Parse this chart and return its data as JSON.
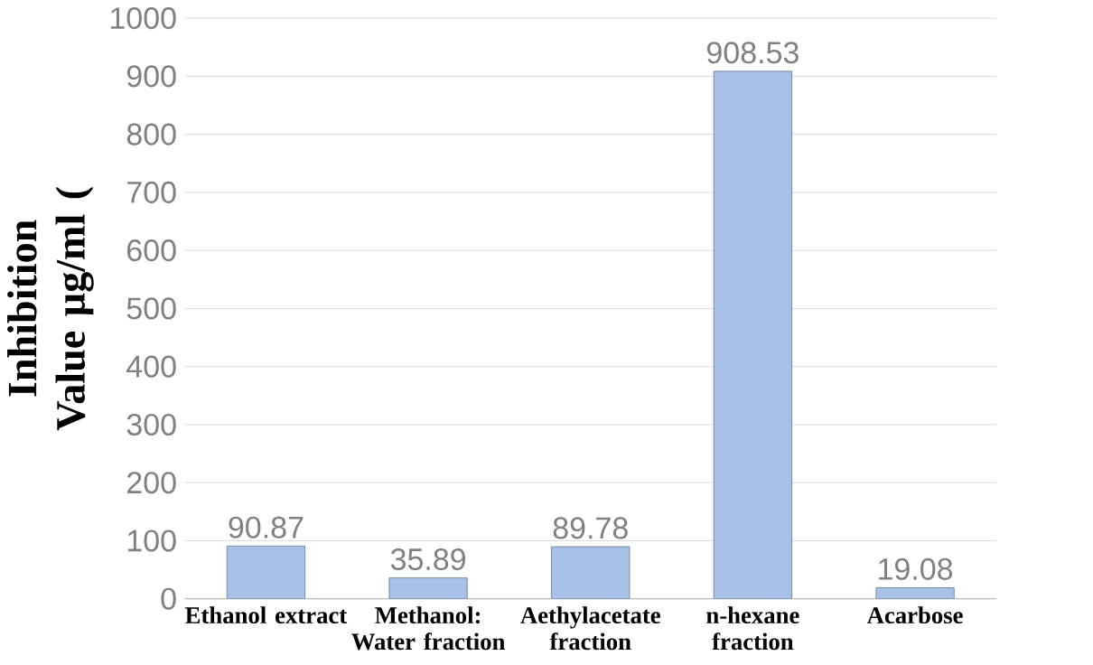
{
  "chart_data": {
    "type": "bar",
    "ylabel": "Inhibition Value µg/ml (",
    "categories": [
      "Ethanol extract",
      "Methanol: Water fraction",
      "Aethylacetate fraction",
      "n-hexane fraction",
      "Acarbose"
    ],
    "values": [
      90.87,
      35.89,
      89.78,
      908.53,
      19.08
    ],
    "color": "#a7c2e6",
    "ylim": [
      0,
      1000
    ],
    "yticks": [
      0,
      100,
      200,
      300,
      400,
      500,
      600,
      700,
      800,
      900,
      1000
    ],
    "grid": "y",
    "data_labels": true
  }
}
